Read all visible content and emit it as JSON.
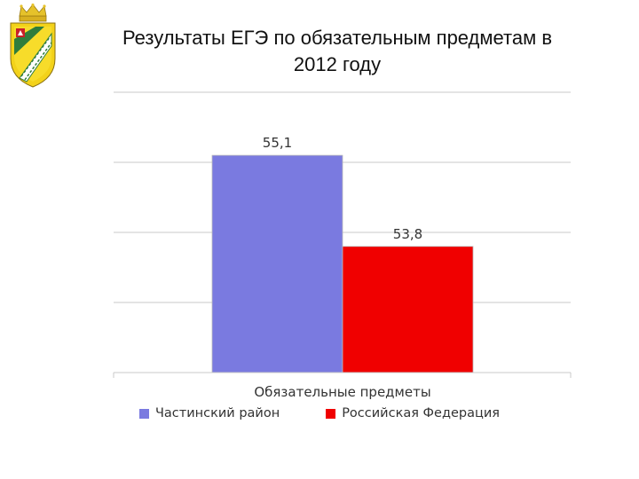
{
  "header": {
    "title_line1": "Результаты ЕГЭ по обязательным предметам в",
    "title_line2": "2012 году"
  },
  "chart_data": {
    "type": "bar",
    "categories": [
      "Обязательные предметы"
    ],
    "series": [
      {
        "name": "Частинский район",
        "values": [
          55.1
        ],
        "label": "55,1",
        "color": "#7a7ae0"
      },
      {
        "name": "Российская Федерация",
        "values": [
          53.8
        ],
        "label": "53,8",
        "color": "#f00000"
      }
    ],
    "xlabel": "Обязательные предметы",
    "ylabel": "",
    "ylim": [
      52,
      56
    ],
    "grid": true,
    "legend": "bottom"
  }
}
